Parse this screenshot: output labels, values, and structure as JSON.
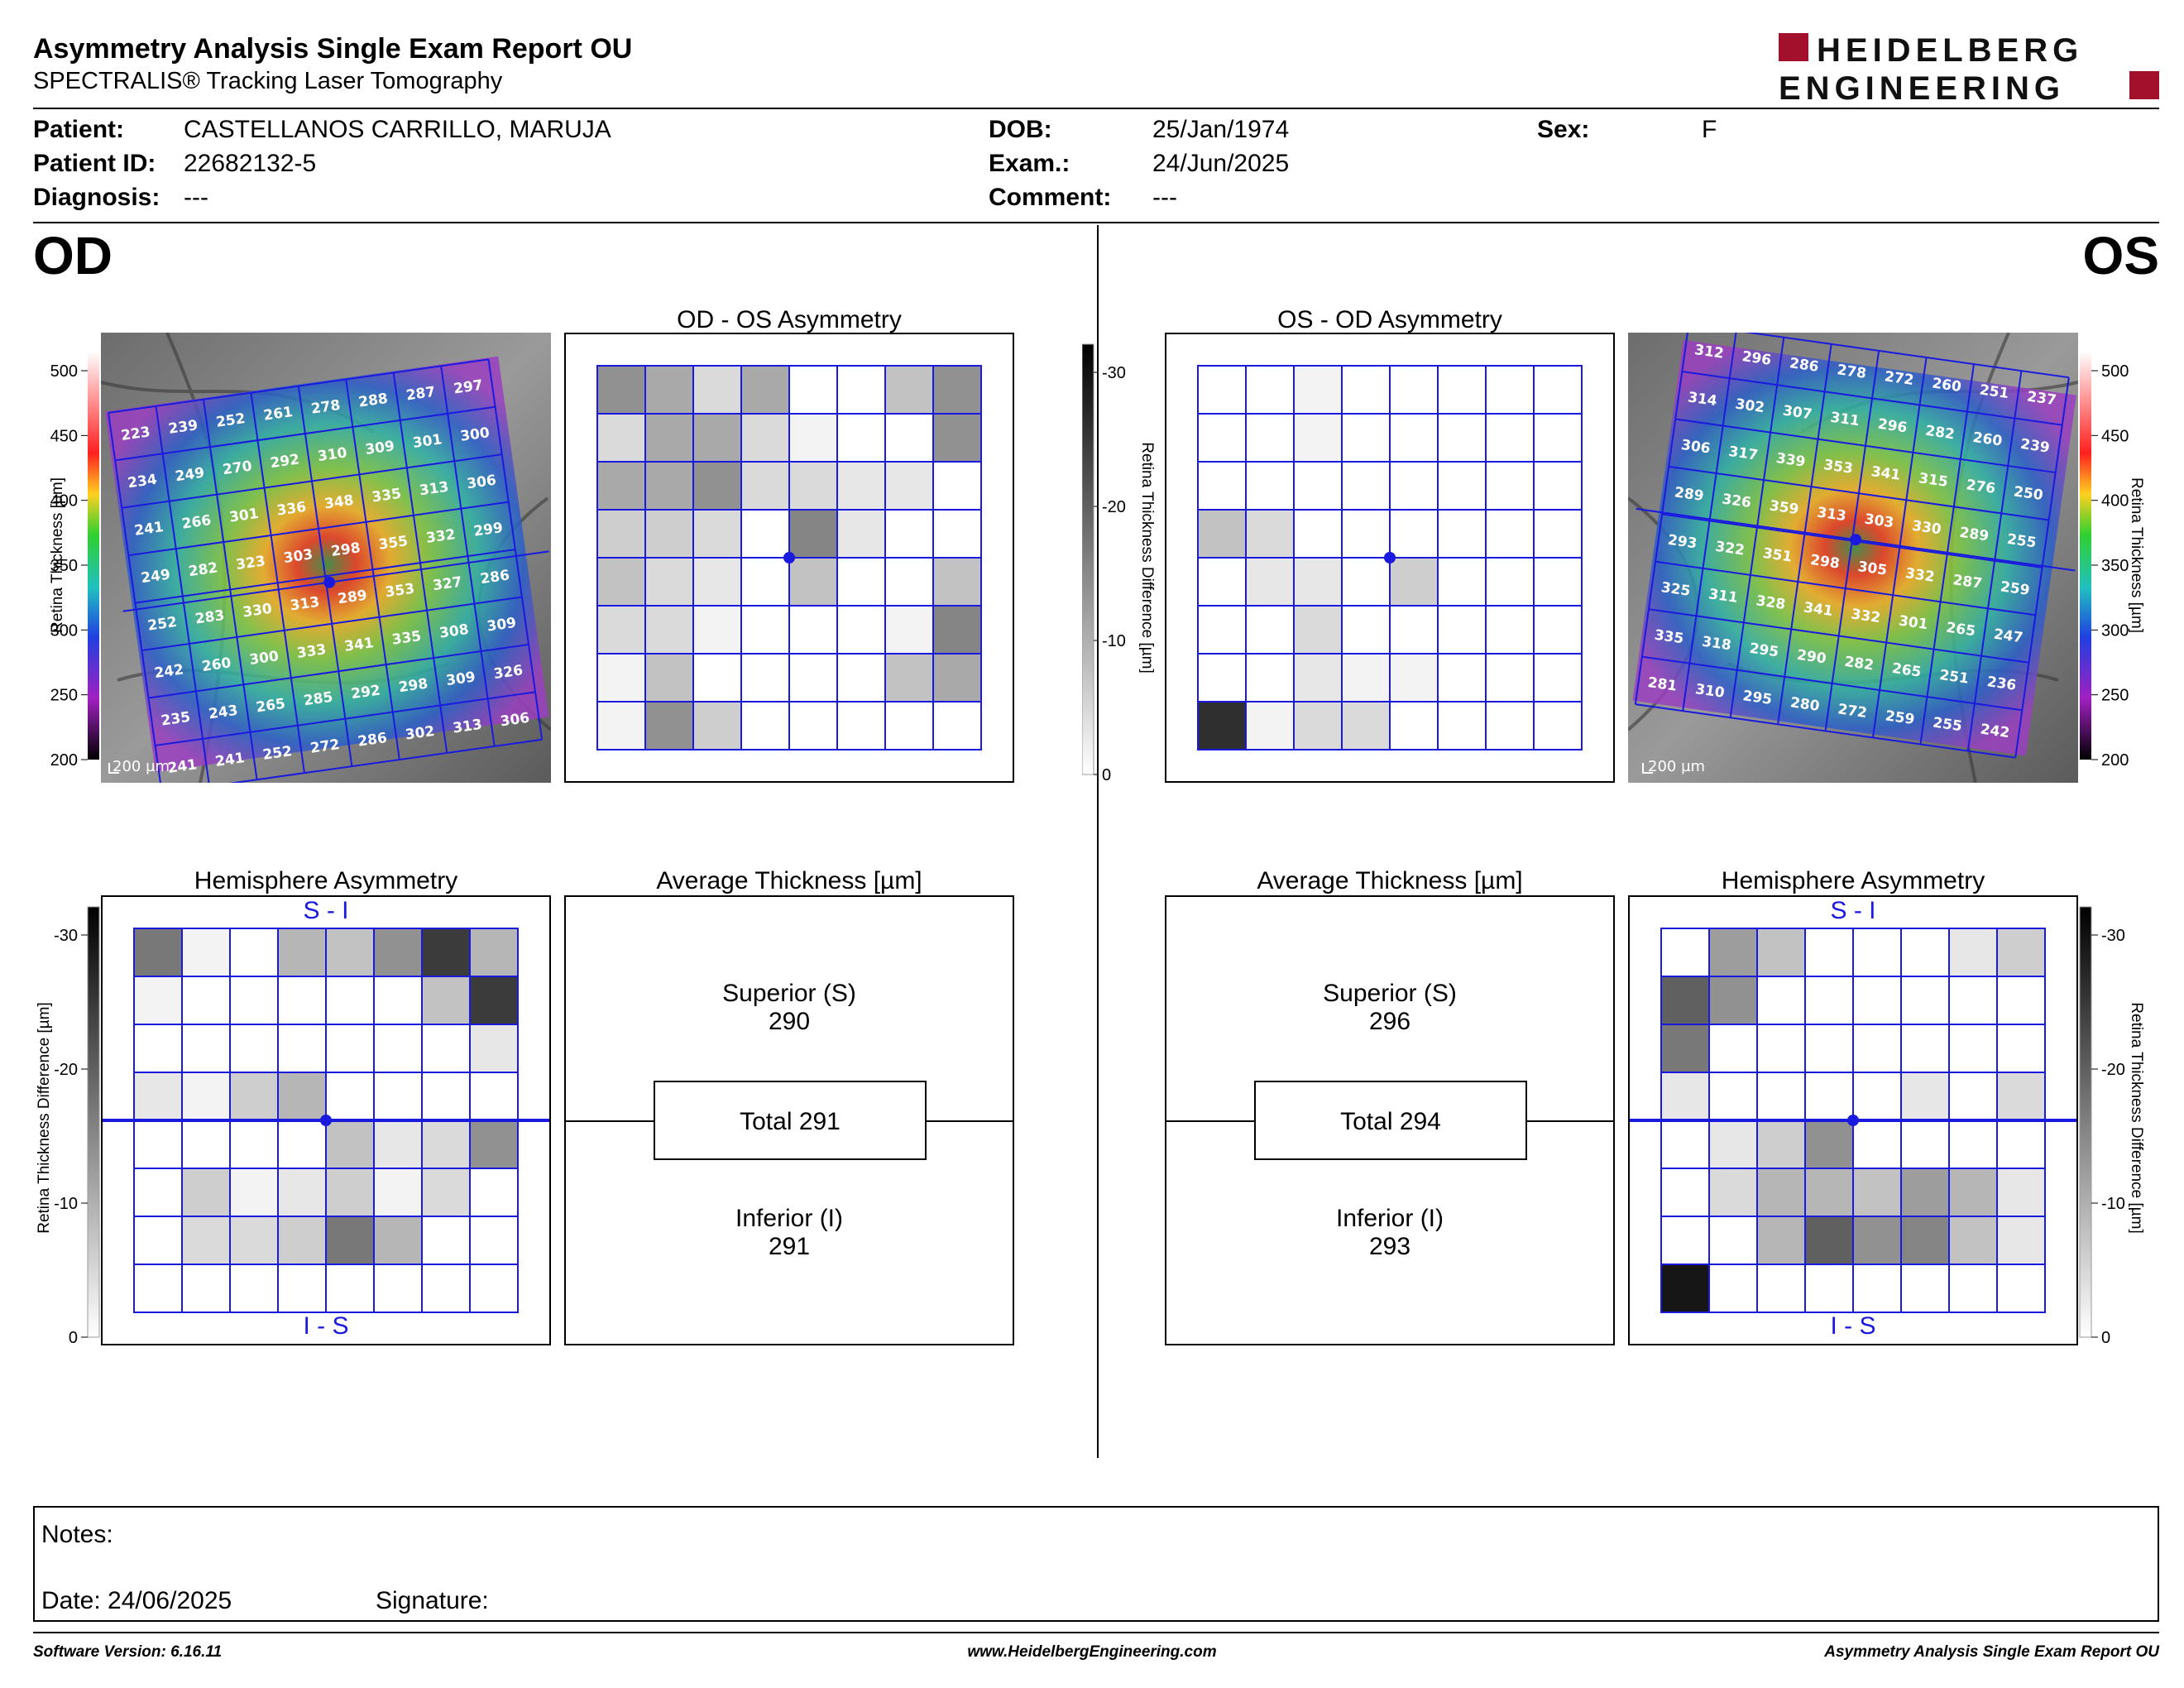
{
  "header": {
    "title": "Asymmetry Analysis Single Exam Report OU",
    "subtitle": "SPECTRALIS® Tracking Laser Tomography",
    "logo_line1": "HEIDELBERG",
    "logo_line2": "ENGINEERING"
  },
  "patient": {
    "patient_label": "Patient:",
    "patient_value": "CASTELLANOS CARRILLO, MARUJA",
    "id_label": "Patient ID:",
    "id_value": "22682132-5",
    "diagnosis_label": "Diagnosis:",
    "diagnosis_value": "---",
    "dob_label": "DOB:",
    "dob_value": "25/Jan/1974",
    "exam_label": "Exam.:",
    "exam_value": "24/Jun/2025",
    "comment_label": "Comment:",
    "comment_value": "---",
    "sex_label": "Sex:",
    "sex_value": "F"
  },
  "eyes": {
    "od": "OD",
    "os": "OS"
  },
  "panels": {
    "od_os_asym_title": "OD - OS Asymmetry",
    "os_od_asym_title": "OS - OD Asymmetry",
    "hemi_title": "Hemisphere Asymmetry",
    "avg_title": "Average Thickness [µm]",
    "si_label": "S - I",
    "is_label": "I - S",
    "scale_bar": "200 µm"
  },
  "thickness_scale": {
    "label": "Retina Thickness [µm]",
    "ticks": [
      "500",
      "450",
      "400",
      "350",
      "300",
      "250",
      "200"
    ]
  },
  "difference_scale": {
    "label": "Retina Thickness Difference [µm]",
    "ticks": [
      "-30",
      "-20",
      "-10",
      "0"
    ]
  },
  "colors": {
    "grid": "#1a1adf",
    "accent_red": "#a3102b"
  },
  "od_grid": [
    [
      "223",
      "239",
      "252",
      "261",
      "278",
      "288",
      "287",
      "297"
    ],
    [
      "234",
      "249",
      "270",
      "292",
      "310",
      "309",
      "301",
      "300"
    ],
    [
      "241",
      "266",
      "301",
      "336",
      "348",
      "335",
      "313",
      "306"
    ],
    [
      "249",
      "282",
      "323",
      "303",
      "298",
      "355",
      "332",
      "299"
    ],
    [
      "252",
      "283",
      "330",
      "313",
      "289",
      "353",
      "327",
      "286"
    ],
    [
      "242",
      "260",
      "300",
      "333",
      "341",
      "335",
      "308",
      "309"
    ],
    [
      "235",
      "243",
      "265",
      "285",
      "292",
      "298",
      "309",
      "326"
    ],
    [
      "241",
      "241",
      "252",
      "272",
      "286",
      "302",
      "313",
      "306"
    ]
  ],
  "os_grid": [
    [
      "312",
      "296",
      "286",
      "278",
      "272",
      "260",
      "251",
      "237"
    ],
    [
      "314",
      "302",
      "307",
      "311",
      "296",
      "282",
      "260",
      "239"
    ],
    [
      "306",
      "317",
      "339",
      "353",
      "341",
      "315",
      "276",
      "250"
    ],
    [
      "289",
      "326",
      "359",
      "313",
      "303",
      "330",
      "289",
      "255"
    ],
    [
      "293",
      "322",
      "351",
      "298",
      "305",
      "332",
      "287",
      "259"
    ],
    [
      "325",
      "311",
      "328",
      "341",
      "332",
      "301",
      "265",
      "247"
    ],
    [
      "335",
      "318",
      "295",
      "290",
      "282",
      "265",
      "251",
      "236"
    ],
    [
      "281",
      "310",
      "295",
      "280",
      "272",
      "259",
      "255",
      "242"
    ]
  ],
  "od_asym_shades": [
    [
      0.45,
      0.35,
      0.15,
      0.35,
      0,
      0,
      0.25,
      0.45
    ],
    [
      0.15,
      0.35,
      0.35,
      0.15,
      0.05,
      0,
      0,
      0.45
    ],
    [
      0.35,
      0.35,
      0.45,
      0.15,
      0.15,
      0.1,
      0.1,
      0
    ],
    [
      0.2,
      0.2,
      0.15,
      0,
      0.5,
      0.1,
      0,
      0
    ],
    [
      0.25,
      0.15,
      0.1,
      0,
      0.25,
      0,
      0,
      0.25
    ],
    [
      0.15,
      0.15,
      0.05,
      0,
      0,
      0,
      0.05,
      0.5
    ],
    [
      0.05,
      0.25,
      0,
      0,
      0,
      0,
      0.25,
      0.35
    ],
    [
      0.05,
      0.45,
      0.2,
      0,
      0,
      0,
      0,
      0
    ]
  ],
  "os_asym_shades": [
    [
      0,
      0,
      0.05,
      0,
      0,
      0,
      0,
      0
    ],
    [
      0,
      0,
      0.05,
      0,
      0,
      0,
      0,
      0
    ],
    [
      0,
      0,
      0,
      0,
      0,
      0,
      0,
      0
    ],
    [
      0.25,
      0.15,
      0,
      0,
      0,
      0,
      0,
      0
    ],
    [
      0,
      0.1,
      0.1,
      0,
      0.2,
      0,
      0,
      0
    ],
    [
      0,
      0,
      0.15,
      0,
      0,
      0,
      0,
      0
    ],
    [
      0,
      0,
      0.1,
      0.05,
      0.05,
      0,
      0,
      0
    ],
    [
      0.85,
      0.05,
      0.15,
      0.15,
      0,
      0,
      0,
      0
    ]
  ],
  "od_hemi_shades": [
    [
      0.55,
      0.05,
      0,
      0.3,
      0.25,
      0.45,
      0.8,
      0.3
    ],
    [
      0.05,
      0,
      0,
      0,
      0,
      0,
      0.25,
      0.8
    ],
    [
      0,
      0,
      0,
      0,
      0,
      0,
      0,
      0.1
    ],
    [
      0.1,
      0.05,
      0.2,
      0.3,
      0,
      0,
      0,
      0
    ],
    [
      0,
      0,
      0,
      0,
      0.25,
      0.1,
      0.15,
      0.45
    ],
    [
      0,
      0.2,
      0.05,
      0.1,
      0.2,
      0.05,
      0.15,
      0
    ],
    [
      0,
      0.15,
      0.15,
      0.2,
      0.55,
      0.3,
      0,
      0
    ],
    [
      0,
      0,
      0,
      0,
      0,
      0,
      0,
      0
    ]
  ],
  "os_hemi_shades": [
    [
      0,
      0.4,
      0.25,
      0,
      0,
      0,
      0.1,
      0.2
    ],
    [
      0.65,
      0.45,
      0,
      0,
      0,
      0,
      0,
      0
    ],
    [
      0.55,
      0,
      0,
      0,
      0,
      0,
      0,
      0
    ],
    [
      0.1,
      0,
      0,
      0,
      0,
      0.1,
      0,
      0.15
    ],
    [
      0,
      0.1,
      0.2,
      0.45,
      0,
      0,
      0,
      0
    ],
    [
      0,
      0.15,
      0.3,
      0.3,
      0.25,
      0.4,
      0.3,
      0.1
    ],
    [
      0,
      0,
      0.3,
      0.65,
      0.45,
      0.5,
      0.25,
      0.1
    ],
    [
      0.95,
      0,
      0,
      0,
      0,
      0,
      0,
      0
    ]
  ],
  "od_avg": {
    "superior_label": "Superior (S)",
    "superior_value": "290",
    "total": "Total 291",
    "inferior_label": "Inferior (I)",
    "inferior_value": "291"
  },
  "os_avg": {
    "superior_label": "Superior (S)",
    "superior_value": "296",
    "total": "Total 294",
    "inferior_label": "Inferior (I)",
    "inferior_value": "293"
  },
  "notes": {
    "notes_label": "Notes:",
    "date_label": "Date: 24/06/2025",
    "signature_label": "Signature:"
  },
  "footer": {
    "software": "Software Version: 6.16.11",
    "website": "www.HeidelbergEngineering.com",
    "report": "Asymmetry Analysis Single Exam Report OU"
  }
}
